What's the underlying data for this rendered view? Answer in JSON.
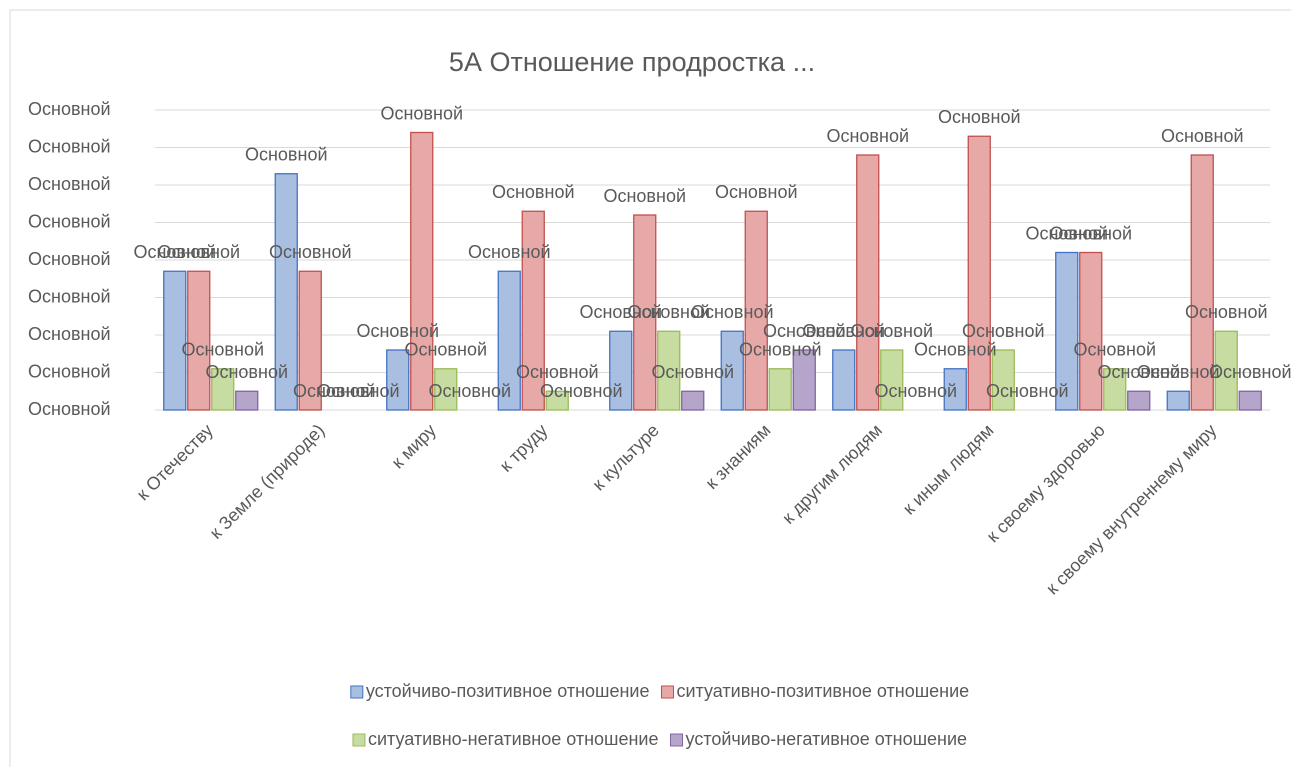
{
  "chart_data": {
    "type": "bar",
    "title": "5А Отношение продростка ...",
    "categories": [
      "к Отечеству",
      "к Земле (природе)",
      "к миру",
      "к труду",
      "к культуре",
      "к знаниям",
      "к другим людям",
      "к иным людям",
      "к своему здоровью",
      "к своему внутреннему миру"
    ],
    "series": [
      {
        "name": "устойчиво-позитивное отношение",
        "color": "#a9bfe1",
        "border": "#4472c4",
        "values": [
          3.7,
          6.3,
          1.6,
          3.7,
          2.1,
          2.1,
          1.6,
          1.1,
          4.2,
          0.5
        ],
        "value_labels": [
          "Основной",
          "Основной",
          "Основной",
          "Основной",
          "Основной",
          "Основной",
          "Основной",
          "Основной",
          "Основной",
          "Основной"
        ]
      },
      {
        "name": "ситуативно-позитивное отношение",
        "color": "#e6a9a8",
        "border": "#c0504d",
        "values": [
          3.7,
          3.7,
          7.4,
          5.3,
          5.2,
          5.3,
          6.8,
          7.3,
          4.2,
          6.8
        ],
        "value_labels": [
          "Основной",
          "Основной",
          "Основной",
          "Основной",
          "Основной",
          "Основной",
          "Основной",
          "Основной",
          "Основной",
          "Основной"
        ]
      },
      {
        "name": "ситуативно-негативное отношение",
        "color": "#c6dca0",
        "border": "#9bbb59",
        "values": [
          1.1,
          0,
          1.1,
          0.5,
          2.1,
          1.1,
          1.6,
          1.6,
          1.1,
          2.1
        ],
        "value_labels": [
          "Основной",
          "Основной",
          "Основной",
          "Основной",
          "Основной",
          "Основной",
          "Основной",
          "Основной",
          "Основной",
          "Основной"
        ]
      },
      {
        "name": "устойчиво-негативное отношение",
        "color": "#b6a5ca",
        "border": "#8064a2",
        "values": [
          0.5,
          0,
          0,
          0,
          0.5,
          1.6,
          0,
          0,
          0.5,
          0.5
        ],
        "value_labels": [
          "Основной",
          "Основной",
          "Основной",
          "Основной",
          "Основной",
          "Основной",
          "Основной",
          "Основной",
          "Основной",
          "Основной"
        ]
      }
    ],
    "ylim": [
      0,
      8
    ],
    "yticks": [
      {
        "value": 0,
        "label": "Основной"
      },
      {
        "value": 1,
        "label": "Основной"
      },
      {
        "value": 2,
        "label": "Основной"
      },
      {
        "value": 3,
        "label": "Основной"
      },
      {
        "value": 4,
        "label": "Основной"
      },
      {
        "value": 5,
        "label": "Основной"
      },
      {
        "value": 6,
        "label": "Основной"
      },
      {
        "value": 7,
        "label": "Основной"
      },
      {
        "value": 8,
        "label": "Основной"
      }
    ],
    "grid": true,
    "legend": "bottom"
  }
}
